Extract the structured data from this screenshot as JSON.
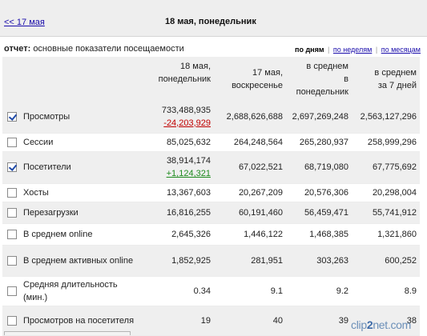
{
  "nav": {
    "prev_label": "<< 17 мая",
    "date_title": "18 мая, понедельник"
  },
  "report": {
    "prefix": "отчет:",
    "title": "основные показатели посещаемости"
  },
  "period": {
    "active": "по дням",
    "weeks": "по неделям",
    "months": "по месяцам",
    "separator": "|"
  },
  "columns": {
    "c1": [
      "18 мая,",
      "понедельник"
    ],
    "c2": [
      "17 мая,",
      "воскресенье"
    ],
    "c3": [
      "в среднем",
      "в",
      "понедельник"
    ],
    "c4": [
      "в среднем",
      "за 7 дней"
    ]
  },
  "rows": [
    {
      "label": "Просмотры",
      "checked": true,
      "v1": "733,488,935",
      "diff": "-24,203,929",
      "v2": "2,688,626,688",
      "v3": "2,697,269,248",
      "v4": "2,563,127,296"
    },
    {
      "label": "Сессии",
      "checked": false,
      "v1": "85,025,632",
      "v2": "264,248,564",
      "v3": "265,280,937",
      "v4": "258,999,296"
    },
    {
      "label": "Посетители",
      "checked": true,
      "v1": "38,914,174",
      "diff": "+1,124,321",
      "v2": "67,022,521",
      "v3": "68,719,080",
      "v4": "67,775,692"
    },
    {
      "label": "Хосты",
      "checked": false,
      "v1": "13,367,603",
      "v2": "20,267,209",
      "v3": "20,576,306",
      "v4": "20,298,004"
    },
    {
      "label": "Перезагрузки",
      "checked": false,
      "v1": "16,816,255",
      "v2": "60,191,460",
      "v3": "56,459,471",
      "v4": "55,741,912"
    },
    {
      "label": "В среднем online",
      "checked": false,
      "v1": "2,645,326",
      "v2": "1,446,122",
      "v3": "1,468,385",
      "v4": "1,321,860"
    },
    {
      "label": "В среднем активных online",
      "checked": false,
      "v1": "1,852,925",
      "v2": "281,951",
      "v3": "303,263",
      "v4": "600,252"
    },
    {
      "label": "Средняя длительность (мин.)",
      "checked": false,
      "v1": "0.34",
      "v2": "9.1",
      "v3": "9.2",
      "v4": "8.9"
    },
    {
      "label": "Просмотров на посетителя",
      "checked": false,
      "v1": "19",
      "v2": "40",
      "v3": "39",
      "v4": "38"
    }
  ],
  "watermark": {
    "a": "clip",
    "b": "2",
    "c": "net.com"
  }
}
